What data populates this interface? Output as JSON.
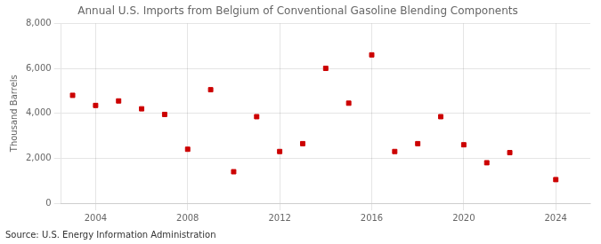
{
  "chart_data": {
    "type": "scatter",
    "title": "Annual U.S. Imports from Belgium of Conventional Gasoline Blending Components",
    "ylabel": "Thousand Barrels",
    "source": "Source: U.S. Energy Information Administration",
    "x": [
      2003,
      2004,
      2005,
      2006,
      2007,
      2008,
      2009,
      2010,
      2011,
      2012,
      2013,
      2014,
      2015,
      2016,
      2017,
      2018,
      2019,
      2020,
      2021,
      2022,
      2023,
      2024
    ],
    "values": [
      4800,
      4350,
      4550,
      4200,
      3950,
      2400,
      5050,
      1400,
      3850,
      2300,
      2650,
      6000,
      4450,
      6600,
      2300,
      2650,
      3850,
      2600,
      1800,
      2250,
      null,
      1050
    ],
    "color": "#cc0000",
    "marker": "square",
    "xlim": [
      2002.5,
      2025.5
    ],
    "xticks": [
      2004,
      2008,
      2012,
      2016,
      2020,
      2024
    ],
    "ylim": [
      0,
      8000
    ],
    "yticks": [
      0,
      {
        "value": 2000,
        "label": "2,000"
      },
      {
        "value": 4000,
        "label": "4,000"
      },
      {
        "value": 6000,
        "label": "6,000"
      },
      {
        "value": 8000,
        "label": "8,000"
      }
    ],
    "grid": true
  }
}
